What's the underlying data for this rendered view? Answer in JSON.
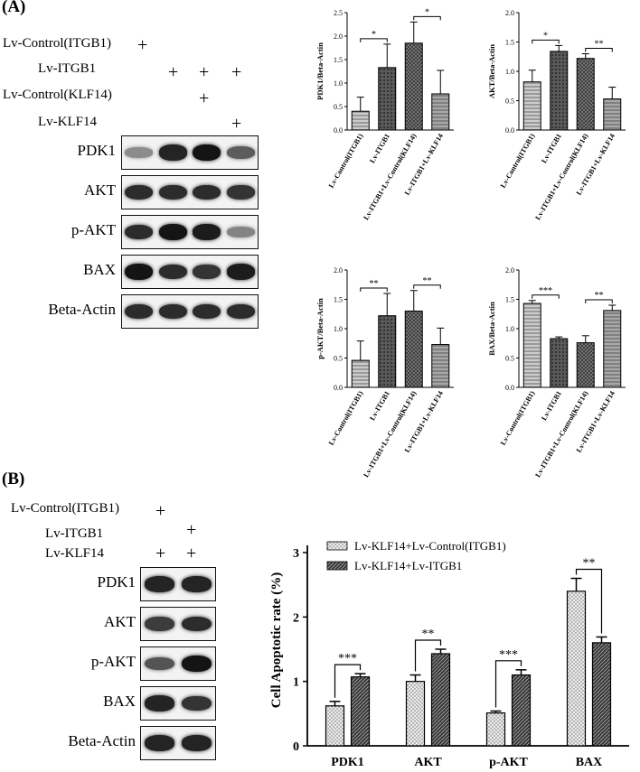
{
  "panel_a": {
    "label": "(A)",
    "conditions": [
      {
        "label": "Lv-Control(ITGB1)",
        "lanes": [
          1
        ]
      },
      {
        "label": "Lv-ITGB1",
        "lanes": [
          2,
          3,
          4
        ]
      },
      {
        "label": "Lv-Control(KLF14)",
        "lanes": [
          3
        ]
      },
      {
        "label": "Lv-KLF14",
        "lanes": [
          4
        ]
      }
    ],
    "plus": "+",
    "blot_rows": [
      {
        "label": "PDK1",
        "intensity": [
          0.25,
          0.9,
          1.0,
          0.55
        ]
      },
      {
        "label": "AKT",
        "intensity": [
          0.85,
          0.85,
          0.85,
          0.8
        ]
      },
      {
        "label": "p-AKT",
        "intensity": [
          0.85,
          1.0,
          0.95,
          0.3
        ]
      },
      {
        "label": "BAX",
        "intensity": [
          1.0,
          0.85,
          0.8,
          0.95
        ]
      },
      {
        "label": "Beta-Actin",
        "intensity": [
          0.85,
          0.85,
          0.85,
          0.85
        ]
      }
    ]
  },
  "panel_b": {
    "label": "(B)",
    "conditions": [
      {
        "label": "Lv-Control(ITGB1)",
        "lanes": [
          1
        ]
      },
      {
        "label": "Lv-ITGB1",
        "lanes": [
          2
        ]
      },
      {
        "label": "Lv-KLF14",
        "lanes": [
          1,
          2
        ]
      }
    ],
    "plus": "+",
    "blot_rows": [
      {
        "label": "PDK1",
        "intensity": [
          0.9,
          0.9
        ]
      },
      {
        "label": "AKT",
        "intensity": [
          0.75,
          0.85
        ]
      },
      {
        "label": "p-AKT",
        "intensity": [
          0.6,
          1.0
        ]
      },
      {
        "label": "BAX",
        "intensity": [
          0.9,
          0.8
        ]
      },
      {
        "label": "Beta-Actin",
        "intensity": [
          0.9,
          0.9
        ]
      }
    ]
  },
  "chart_data": [
    {
      "type": "bar",
      "categories": [
        "Lv-Control(ITGB1)",
        "Lv-ITGB1",
        "Lv-ITGB1+Lv-Control(KLF14)",
        "Lv-ITGB1+Lv-KLF14"
      ],
      "values": [
        0.4,
        1.33,
        1.85,
        0.77
      ],
      "errors": [
        0.3,
        0.5,
        0.45,
        0.5
      ],
      "ylabel": "PDK1/Beta-Actin",
      "ylim": [
        0,
        2.5
      ],
      "yticks": [
        "0.0",
        "0.5",
        "1.0",
        "1.5",
        "2.0",
        "2.5"
      ],
      "significance": [
        {
          "from": 0,
          "to": 1,
          "label": "*"
        },
        {
          "from": 2,
          "to": 3,
          "label": "*"
        }
      ],
      "patterns": [
        "#9a9a9a",
        "#5a5a5a",
        "#808080",
        "#a8a8a8"
      ]
    },
    {
      "type": "bar",
      "categories": [
        "Lv-Control(ITGB1)",
        "Lv-ITGB1",
        "Lv-ITGB1+Lv-Control(KLF14)",
        "Lv-ITGB1+Lv-KLF14"
      ],
      "values": [
        0.82,
        1.34,
        1.22,
        0.53
      ],
      "errors": [
        0.2,
        0.1,
        0.08,
        0.2
      ],
      "ylabel": "AKT/Beta-Actin",
      "ylim": [
        0,
        2.0
      ],
      "yticks": [
        "0.0",
        "0.5",
        "1.0",
        "1.5",
        "2.0"
      ],
      "significance": [
        {
          "from": 0,
          "to": 1,
          "label": "*"
        },
        {
          "from": 2,
          "to": 3,
          "label": "**"
        }
      ],
      "patterns": [
        "#9a9a9a",
        "#5a5a5a",
        "#808080",
        "#a8a8a8"
      ]
    },
    {
      "type": "bar",
      "categories": [
        "Lv-Control(ITGB1)",
        "Lv-ITGB1",
        "Lv-ITGB1+Lv-Control(KLF14)",
        "Lv-ITGB1+Lv-KLF14"
      ],
      "values": [
        0.46,
        1.22,
        1.3,
        0.73
      ],
      "errors": [
        0.33,
        0.38,
        0.35,
        0.28
      ],
      "ylabel": "p-AKT/Beta-Actin",
      "ylim": [
        0,
        2.0
      ],
      "yticks": [
        "0.0",
        "0.5",
        "1.0",
        "1.5",
        "2.0"
      ],
      "significance": [
        {
          "from": 0,
          "to": 1,
          "label": "**"
        },
        {
          "from": 2,
          "to": 3,
          "label": "**"
        }
      ],
      "patterns": [
        "#9a9a9a",
        "#5a5a5a",
        "#808080",
        "#a8a8a8"
      ]
    },
    {
      "type": "bar",
      "categories": [
        "Lv-Control(ITGB1)",
        "Lv-ITGB1",
        "Lv-ITGB1+Lv-Control(KLF14)",
        "Lv-ITGB1+Lv-KLF14"
      ],
      "values": [
        1.43,
        0.83,
        0.76,
        1.31
      ],
      "errors": [
        0.05,
        0.03,
        0.12,
        0.09
      ],
      "ylabel": "BAX/Beta-Actin",
      "ylim": [
        0,
        2.0
      ],
      "yticks": [
        "0.0",
        "0.5",
        "1.0",
        "1.5",
        "2.0"
      ],
      "significance": [
        {
          "from": 0,
          "to": 1,
          "label": "***"
        },
        {
          "from": 2,
          "to": 3,
          "label": "**"
        }
      ],
      "patterns": [
        "#9a9a9a",
        "#5a5a5a",
        "#808080",
        "#a8a8a8"
      ]
    },
    {
      "type": "bar",
      "categories": [
        "PDK1",
        "AKT",
        "p-AKT",
        "BAX"
      ],
      "series": [
        {
          "name": "Lv-KLF14+Lv-Control(ITGB1)",
          "values": [
            0.62,
            1.0,
            0.51,
            2.4
          ],
          "errors": [
            0.07,
            0.1,
            0.03,
            0.2
          ],
          "color": "#e0e0e0"
        },
        {
          "name": "Lv-KLF14+Lv-ITGB1",
          "values": [
            1.07,
            1.43,
            1.1,
            1.6
          ],
          "errors": [
            0.05,
            0.07,
            0.08,
            0.09
          ],
          "color": "#3a3a3a"
        }
      ],
      "ylabel": "Cell Apoptotic rate (%)",
      "ylim": [
        0,
        3
      ],
      "yticks": [
        "0",
        "1",
        "2",
        "3"
      ],
      "significance": [
        {
          "group": 0,
          "label": "***"
        },
        {
          "group": 1,
          "label": "**"
        },
        {
          "group": 2,
          "label": "***"
        },
        {
          "group": 3,
          "label": "**"
        }
      ],
      "legend": "top-left"
    }
  ]
}
